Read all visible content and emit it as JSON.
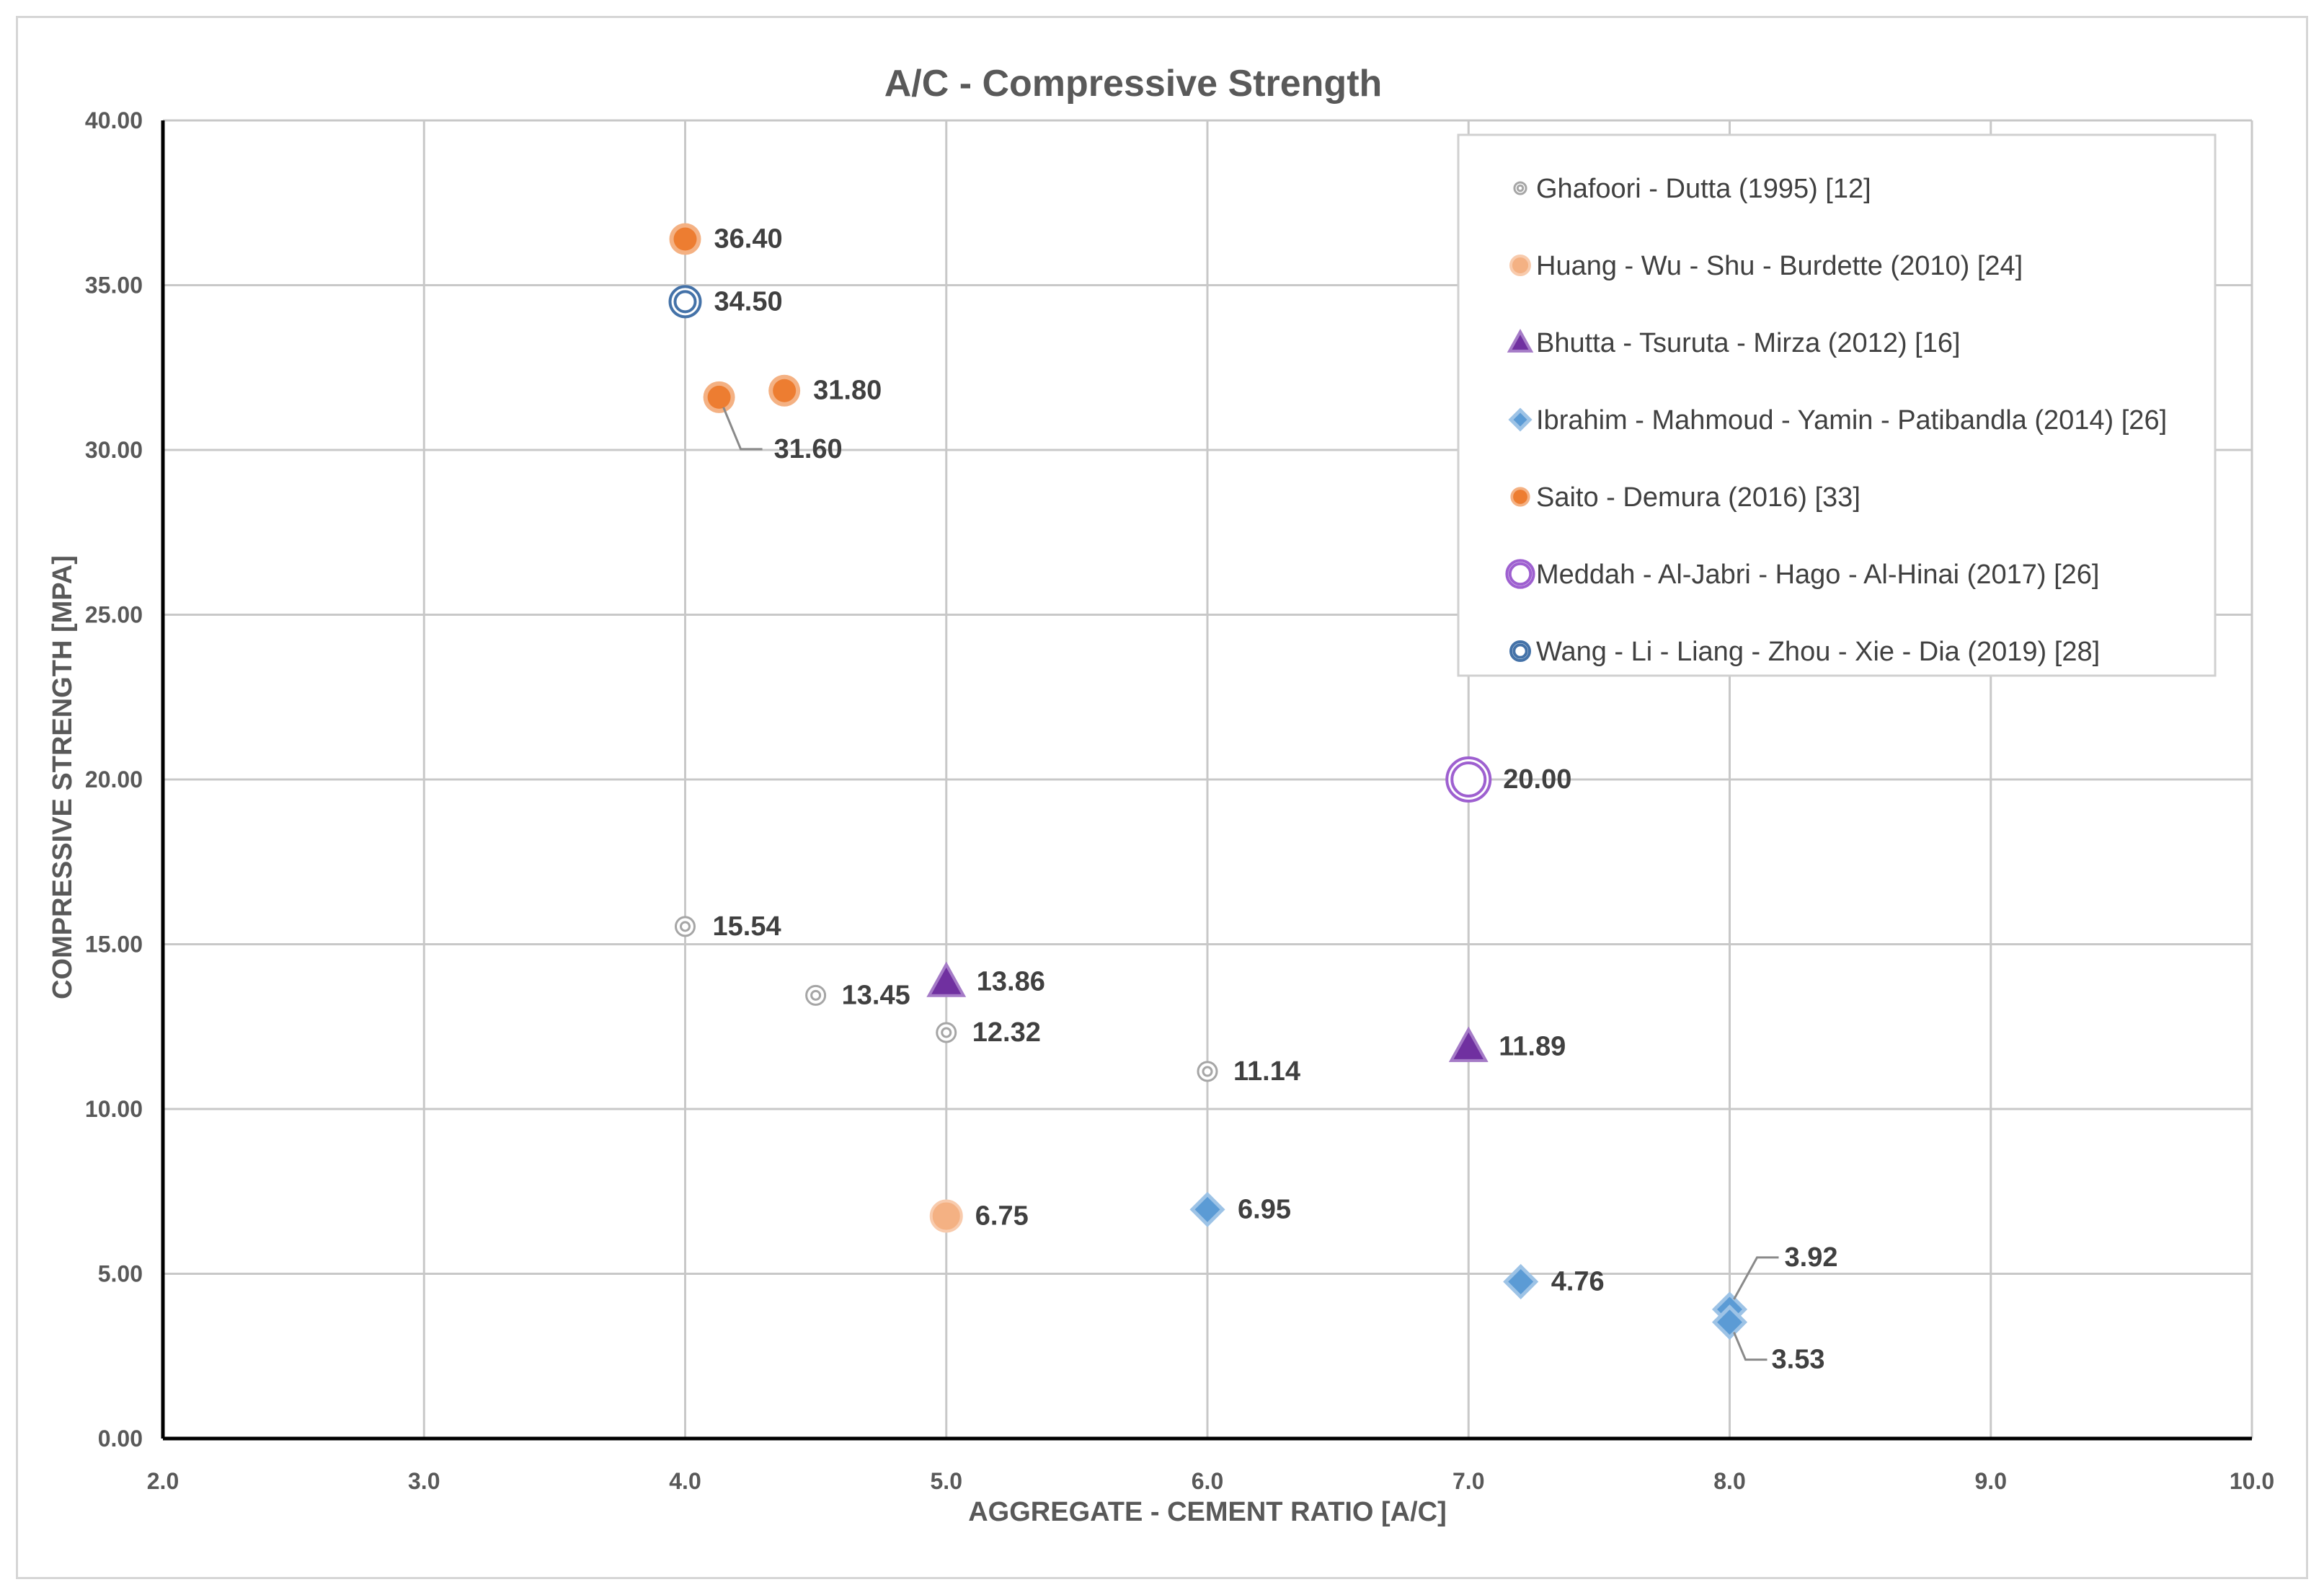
{
  "chart_data": {
    "type": "scatter",
    "title": "A/C - Compressive Strength",
    "xlabel": "AGGREGATE - CEMENT RATIO [A/C]",
    "ylabel": "COMPRESSIVE STRENGTH [MPA]",
    "xlim": [
      2.0,
      10.0
    ],
    "ylim": [
      0.0,
      40.0
    ],
    "x_ticks": [
      2.0,
      3.0,
      4.0,
      5.0,
      6.0,
      7.0,
      8.0,
      9.0,
      10.0
    ],
    "x_tick_labels": [
      "2.0",
      "3.0",
      "4.0",
      "5.0",
      "6.0",
      "7.0",
      "8.0",
      "9.0",
      "10.0"
    ],
    "y_ticks": [
      0,
      5,
      10,
      15,
      20,
      25,
      30,
      35,
      40
    ],
    "y_tick_labels": [
      "0.00",
      "5.00",
      "10.00",
      "15.00",
      "20.00",
      "25.00",
      "30.00",
      "35.00",
      "40.00"
    ],
    "grid": true,
    "legend_position": "top-right",
    "series": [
      {
        "name": "Ghafoori - Dutta (1995) [12]",
        "marker": "target-small",
        "color": "#a6a6a6",
        "points": [
          {
            "x": 4.0,
            "y": 15.54,
            "label": "15.54"
          },
          {
            "x": 4.5,
            "y": 13.45,
            "label": "13.45"
          },
          {
            "x": 5.0,
            "y": 12.32,
            "label": "12.32"
          },
          {
            "x": 6.0,
            "y": 11.14,
            "label": "11.14"
          }
        ]
      },
      {
        "name": "Huang - Wu - Shu - Burdette (2010) [24]",
        "marker": "circle",
        "color": "#f4b183",
        "points": [
          {
            "x": 5.0,
            "y": 6.75,
            "label": "6.75"
          }
        ]
      },
      {
        "name": "Bhutta - Tsuruta - Mirza (2012) [16]",
        "marker": "triangle",
        "color": "#7030a0",
        "points": [
          {
            "x": 5.0,
            "y": 13.86,
            "label": "13.86"
          },
          {
            "x": 7.0,
            "y": 11.89,
            "label": "11.89"
          }
        ]
      },
      {
        "name": "Ibrahim - Mahmoud - Yamin - Patibandla (2014) [26]",
        "marker": "diamond",
        "color": "#5b9bd5",
        "points": [
          {
            "x": 6.0,
            "y": 6.95,
            "label": "6.95"
          },
          {
            "x": 7.2,
            "y": 4.76,
            "label": "4.76"
          },
          {
            "x": 8.0,
            "y": 3.92,
            "label": "3.92"
          },
          {
            "x": 8.0,
            "y": 3.53,
            "label": "3.53"
          }
        ]
      },
      {
        "name": "Saito - Demura (2016) [33]",
        "marker": "circle-ring",
        "color": "#ed7d31",
        "points": [
          {
            "x": 4.0,
            "y": 36.4,
            "label": "36.40"
          },
          {
            "x": 4.13,
            "y": 31.6,
            "label": "31.60"
          },
          {
            "x": 4.38,
            "y": 31.8,
            "label": "31.80"
          }
        ]
      },
      {
        "name": "Meddah - Al-Jabri - Hago - Al-Hinai (2017) [26]",
        "marker": "double-ring",
        "color": "#9e60d0",
        "points": [
          {
            "x": 7.0,
            "y": 20.0,
            "label": "20.00"
          }
        ]
      },
      {
        "name": "Wang - Li - Liang - Zhou - Xie - Dia (2019) [28]",
        "marker": "ring",
        "color": "#4472a8",
        "points": [
          {
            "x": 4.0,
            "y": 34.5,
            "label": "34.50"
          }
        ]
      }
    ]
  }
}
